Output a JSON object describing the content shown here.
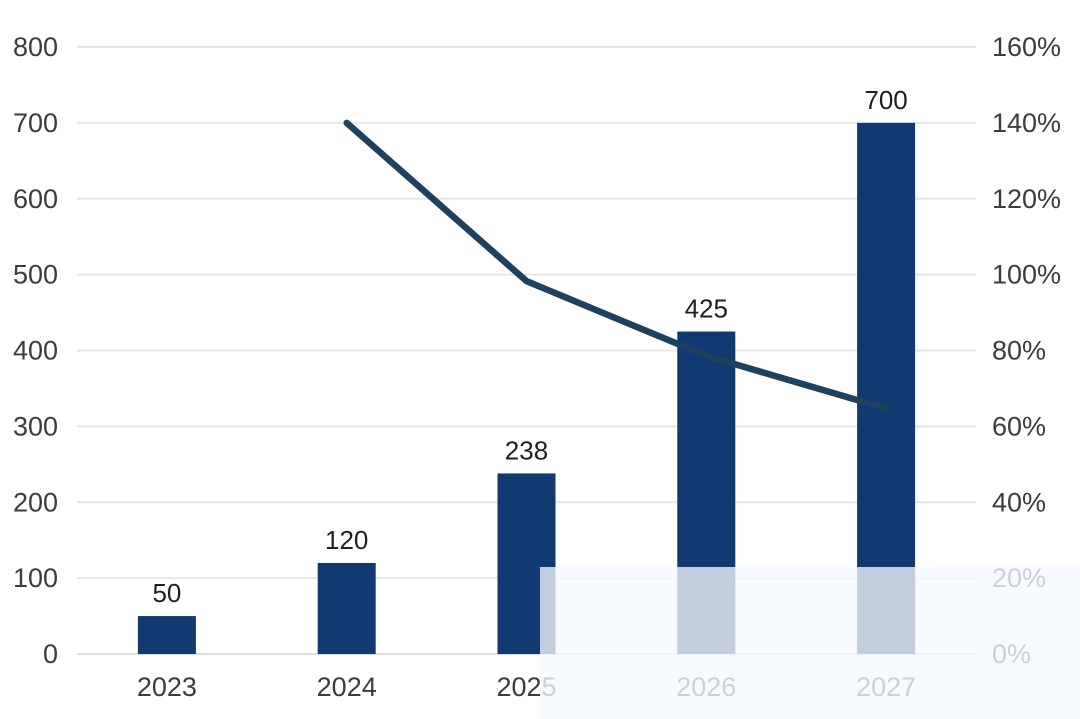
{
  "page": {
    "background": "#ffffff"
  },
  "chart_data": {
    "type": "combo",
    "title": "",
    "subtitle": "",
    "categories": [
      "2023",
      "2024",
      "2025",
      "2026",
      "2027"
    ],
    "series": [
      {
        "name": "annual-value-bars",
        "type": "bar",
        "axis": "left",
        "values": [
          50,
          120,
          238,
          425,
          700
        ],
        "data_labels": [
          "50",
          "120",
          "238",
          "425",
          "700"
        ],
        "color": "#113a70"
      },
      {
        "name": "growth-rate-line",
        "type": "line",
        "axis": "right",
        "unit": "%",
        "values": [
          null,
          140,
          98.3,
          78.6,
          64.7
        ],
        "color": "#1d415f"
      }
    ],
    "left_axis": {
      "min": 0,
      "max": 800,
      "step": 100,
      "tick_labels": [
        "0",
        "100",
        "200",
        "300",
        "400",
        "500",
        "600",
        "700",
        "800"
      ]
    },
    "right_axis": {
      "min": 0,
      "max": 160,
      "step": 20,
      "tick_labels": [
        "0%",
        "20%",
        "40%",
        "60%",
        "80%",
        "100%",
        "120%",
        "140%",
        "160%"
      ]
    },
    "grid": true,
    "legend_position": "none",
    "styles": {
      "bar_color": "#113a70",
      "line_color": "#1d415f",
      "gridline_color": "#e6e6e6",
      "baseline_color": "#dcdcdc",
      "axis_label_color": "#3c3c3c",
      "bar_label_color": "#1f1f1f",
      "overlay_color": "rgba(245,249,255,0.78)"
    }
  }
}
